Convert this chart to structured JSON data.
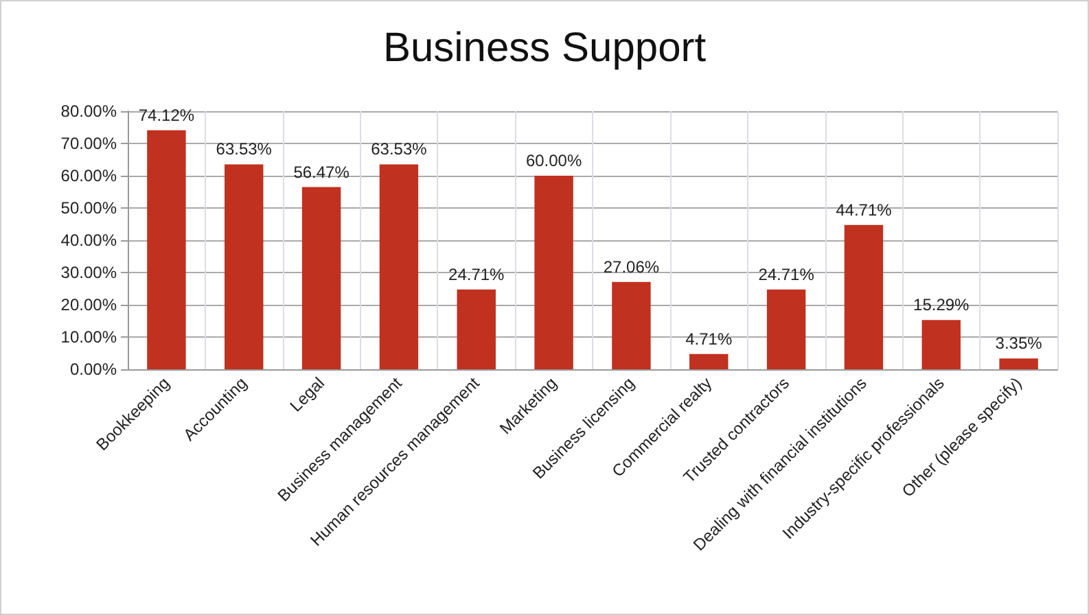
{
  "chart_data": {
    "type": "bar",
    "title": "Business Support",
    "categories": [
      "Bookkeeping",
      "Accounting",
      "Legal",
      "Business management",
      "Human resources management",
      "Marketing",
      "Business licensing",
      "Commercial realty",
      "Trusted contractors",
      "Dealing with financial institutions",
      "Industry-specific professionals",
      "Other (please specify)"
    ],
    "values": [
      74.12,
      63.53,
      56.47,
      63.53,
      24.71,
      60.0,
      27.06,
      4.71,
      24.71,
      44.71,
      15.29,
      3.35
    ],
    "value_labels": [
      "74.12%",
      "63.53%",
      "56.47%",
      "63.53%",
      "24.71%",
      "60.00%",
      "27.06%",
      "4.71%",
      "24.71%",
      "44.71%",
      "15.29%",
      "3.35%"
    ],
    "color": "#c0311f",
    "ylim": [
      0,
      80
    ],
    "yticks": [
      {
        "value": 0,
        "label": "0.00%"
      },
      {
        "value": 10,
        "label": "10.00%"
      },
      {
        "value": 20,
        "label": "20.00%"
      },
      {
        "value": 30,
        "label": "30.00%"
      },
      {
        "value": 40,
        "label": "40.00%"
      },
      {
        "value": 50,
        "label": "50.00%"
      },
      {
        "value": 60,
        "label": "60.00%"
      },
      {
        "value": 70,
        "label": "70.00%"
      },
      {
        "value": 80,
        "label": "80.00%"
      }
    ],
    "grid": true
  }
}
